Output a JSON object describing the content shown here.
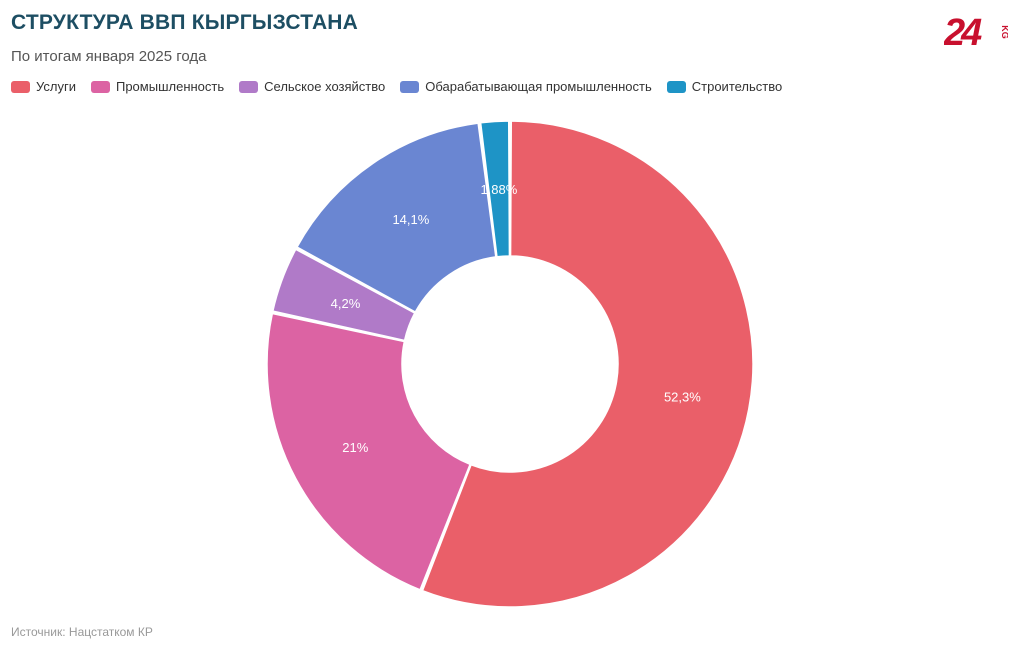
{
  "header": {
    "title": "СТРУКТУРА ВВП КЫРГЫЗСТАНА",
    "subtitle": "По итогам января 2025 года"
  },
  "logo": {
    "icon": "24-kg-logo-icon",
    "number_text": "24",
    "suffix_text": "KG",
    "color": "#c8102e"
  },
  "chart_data": {
    "type": "pie",
    "variant": "donut",
    "title": "СТРУКТУРА ВВП КЫРГЫЗСТАНА",
    "subtitle": "По итогам января 2025 года",
    "legend_position": "top-left",
    "categories": [
      "Услуги",
      "Промышленность",
      "Сельское хозяйство",
      "Обарабатывающая промышленность",
      "Строительство"
    ],
    "values": [
      52.3,
      21,
      4.2,
      14.1,
      1.88
    ],
    "value_labels": [
      "52,3%",
      "21%",
      "4,2%",
      "14,1%",
      "1,88%"
    ],
    "colors": [
      "#ea5f69",
      "#dc63a3",
      "#b07ac8",
      "#6a86d2",
      "#1e94c6"
    ],
    "unit": "%"
  },
  "footer": {
    "source": "Источник: Нацстатком КР"
  }
}
